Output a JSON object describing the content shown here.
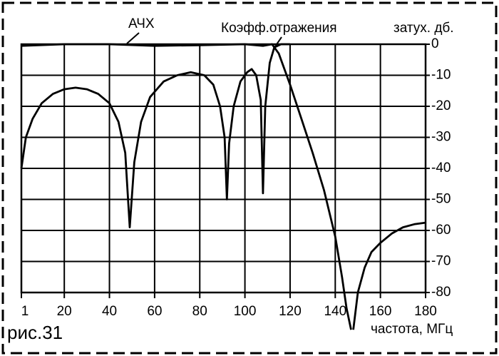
{
  "chart_data": {
    "type": "line",
    "label": "рис.31",
    "xlabel": "частота, МГц",
    "ylabel": "затух. дб.",
    "xlim": [
      1,
      180
    ],
    "xticks": [
      1,
      20,
      40,
      60,
      80,
      100,
      120,
      140,
      160,
      180
    ],
    "ylim": [
      -80,
      0
    ],
    "yticks": [
      0,
      -10,
      -20,
      -30,
      -40,
      -50,
      -60,
      -70,
      -80
    ],
    "grid": true,
    "series": [
      {
        "name": "АЧХ",
        "color": "#000000",
        "x": [
          1,
          20,
          40,
          60,
          80,
          100,
          108,
          112,
          115,
          120,
          125,
          130,
          135,
          140,
          143,
          145,
          147,
          147.5,
          148,
          150,
          153,
          156,
          160,
          165,
          170,
          175,
          180
        ],
        "values": [
          -0.5,
          0,
          0,
          -0.5,
          -0.3,
          0,
          -0.5,
          0,
          -3,
          -13,
          -24,
          -35,
          -47,
          -62,
          -75,
          -85,
          -92,
          null,
          -92,
          -80,
          -72,
          -67,
          -64,
          -61,
          -59,
          -58,
          -57.5
        ]
      },
      {
        "name": "Коэфф.отражения",
        "color": "#000000",
        "x": [
          1,
          3,
          6,
          10,
          15,
          20,
          25,
          30,
          35,
          40,
          44,
          47,
          49,
          51,
          54,
          58,
          64,
          70,
          76,
          82,
          86,
          89,
          91,
          92,
          93,
          95,
          98,
          101,
          103,
          105,
          107,
          108,
          109,
          111,
          113,
          116,
          120
        ],
        "values": [
          -40,
          -30,
          -24,
          -19,
          -16,
          -14.5,
          -14,
          -14.5,
          -16,
          -19,
          -25,
          -35,
          -59,
          -38,
          -25,
          -17,
          -12,
          -10,
          -9,
          -10,
          -13,
          -20,
          -30,
          -50,
          -32,
          -20,
          -12,
          -9,
          -8,
          -10,
          -18,
          -48,
          -20,
          -6,
          -1,
          0,
          0
        ]
      }
    ]
  }
}
